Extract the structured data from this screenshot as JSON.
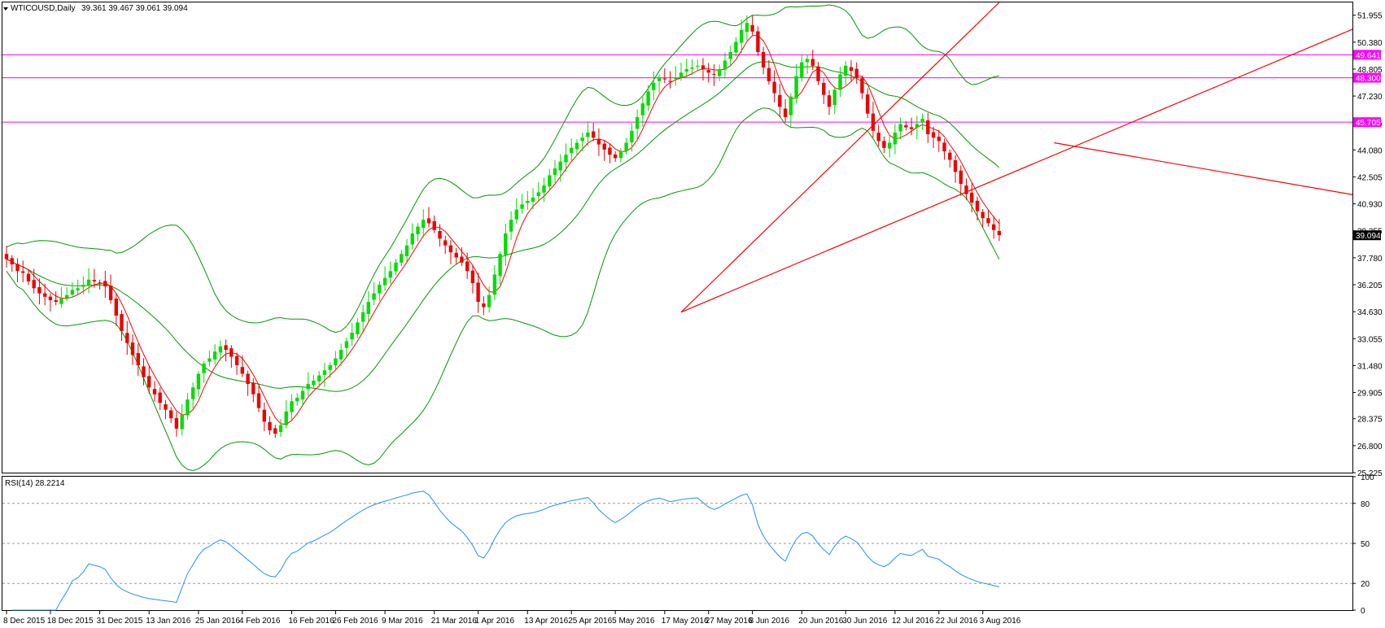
{
  "chart_data": {
    "type": "candlestick",
    "symbol_label": "WTICOUSD,Daily",
    "ohlc_label": "39.361 39.467 39.061 39.094",
    "price_axis": {
      "ylim": [
        25.225,
        52.7
      ],
      "ticks": [
        "51.955",
        "50.380",
        "48.805",
        "47.230",
        "45.655",
        "44.080",
        "42.505",
        "40.930",
        "39.355",
        "37.780",
        "36.205",
        "34.630",
        "33.055",
        "31.480",
        "29.905",
        "28.375",
        "26.800",
        "25.225"
      ],
      "last_price": "39.094"
    },
    "horizontal_levels": [
      {
        "value": 49.641,
        "label": "49.641",
        "color": "#ff00ff"
      },
      {
        "value": 48.3,
        "label": "48.300",
        "color": "#ff00ff"
      },
      {
        "value": 45.705,
        "label": "45.705",
        "color": "#ff00ff"
      }
    ],
    "trend_lines": [
      {
        "from": [
          123,
          34.6
        ],
        "to": [
          181,
          52.7
        ],
        "color": "#ff0000"
      },
      {
        "from": [
          123,
          34.6
        ],
        "to": [
          257,
          52.7
        ],
        "color": "#ff0000"
      },
      {
        "from": [
          191,
          44.5
        ],
        "to": [
          261,
          40.6
        ],
        "color": "#ff0000"
      }
    ],
    "x_labels": [
      {
        "index": 0,
        "label": "8 Dec 2015"
      },
      {
        "index": 8,
        "label": "18 Dec 2015"
      },
      {
        "index": 17,
        "label": "31 Dec 2015"
      },
      {
        "index": 26,
        "label": "13 Jan 2016"
      },
      {
        "index": 35,
        "label": "25 Jan 2016"
      },
      {
        "index": 43,
        "label": "4 Feb 2016"
      },
      {
        "index": 52,
        "label": "16 Feb 2016"
      },
      {
        "index": 60,
        "label": "26 Feb 2016"
      },
      {
        "index": 69,
        "label": "9 Mar 2016"
      },
      {
        "index": 78,
        "label": "21 Mar 2016"
      },
      {
        "index": 86,
        "label": "1 Apr 2016"
      },
      {
        "index": 95,
        "label": "13 Apr 2016"
      },
      {
        "index": 103,
        "label": "25 Apr 2016"
      },
      {
        "index": 111,
        "label": "5 May 2016"
      },
      {
        "index": 120,
        "label": "17 May 2016"
      },
      {
        "index": 128,
        "label": "27 May 2016"
      },
      {
        "index": 136,
        "label": "8 Jun 2016"
      },
      {
        "index": 145,
        "label": "20 Jun 2016"
      },
      {
        "index": 153,
        "label": "30 Jun 2016"
      },
      {
        "index": 162,
        "label": "12 Jul 2016"
      },
      {
        "index": 170,
        "label": "22 Jul 2016"
      },
      {
        "index": 178,
        "label": "3 Aug 2016"
      }
    ],
    "closes": [
      37.7,
      37.4,
      37.0,
      36.9,
      36.4,
      36.0,
      35.7,
      35.5,
      35.3,
      35.2,
      35.4,
      35.6,
      35.9,
      36.0,
      36.2,
      36.5,
      36.4,
      36.3,
      36.1,
      35.3,
      34.4,
      33.5,
      32.8,
      32.1,
      31.5,
      30.8,
      30.2,
      29.8,
      29.3,
      28.9,
      28.4,
      27.8,
      28.6,
      29.5,
      30.2,
      31.0,
      31.6,
      31.9,
      32.3,
      32.6,
      32.4,
      32.0,
      31.5,
      31.0,
      30.4,
      29.8,
      29.0,
      28.2,
      27.7,
      27.5,
      28.0,
      28.8,
      29.4,
      29.6,
      30.0,
      30.4,
      30.6,
      30.9,
      31.2,
      31.5,
      31.9,
      32.4,
      32.9,
      33.4,
      34.0,
      34.6,
      35.2,
      35.7,
      36.2,
      36.6,
      37.0,
      37.5,
      38.0,
      38.5,
      39.2,
      39.6,
      40.0,
      39.8,
      39.4,
      38.9,
      38.5,
      38.1,
      37.8,
      37.5,
      37.0,
      36.3,
      35.2,
      34.9,
      35.6,
      36.8,
      38.0,
      39.2,
      40.0,
      40.6,
      40.9,
      41.1,
      41.3,
      41.6,
      42.0,
      42.6,
      43.0,
      43.4,
      43.8,
      44.2,
      44.5,
      44.8,
      45.1,
      44.8,
      44.4,
      44.1,
      43.8,
      43.6,
      44.0,
      44.5,
      45.2,
      46.0,
      46.8,
      47.5,
      48.0,
      48.3,
      48.2,
      48.1,
      48.3,
      48.6,
      48.8,
      48.9,
      49.0,
      48.8,
      48.6,
      48.5,
      48.8,
      49.3,
      49.8,
      50.4,
      51.1,
      51.5,
      51.0,
      49.8,
      48.9,
      48.1,
      47.4,
      46.6,
      46.0,
      47.2,
      48.4,
      49.2,
      49.4,
      49.0,
      48.1,
      47.3,
      46.6,
      47.6,
      48.5,
      49.0,
      48.7,
      48.3,
      47.4,
      46.2,
      45.2,
      44.6,
      44.2,
      44.5,
      45.1,
      45.6,
      45.4,
      45.3,
      45.6,
      45.9,
      45.0,
      44.8,
      44.6,
      44.0,
      43.5,
      42.8,
      42.1,
      41.5,
      41.0,
      40.5,
      40.1,
      39.8,
      39.4,
      39.1
    ],
    "rsi": {
      "label": "RSI(14) 28.2214",
      "ylim": [
        0,
        100
      ],
      "ticks": [
        "100",
        "80",
        "50",
        "20",
        "0"
      ],
      "levels": [
        80,
        50,
        20
      ],
      "color": "#1e90ff"
    },
    "colors": {
      "bull": "#00dd00",
      "bear": "#ee0000",
      "bollinger": "#009900",
      "ma": "#ff0000"
    }
  }
}
